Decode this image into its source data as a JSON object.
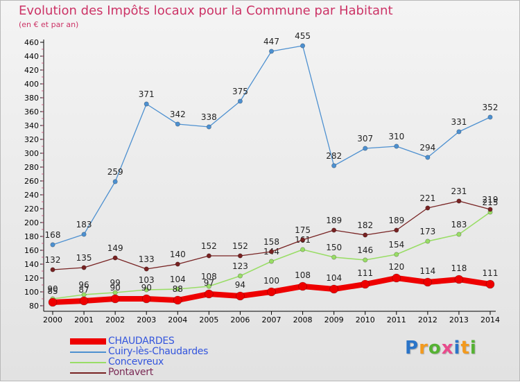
{
  "header": {
    "title": "Evolution des Impôts locaux pour la Commune par Habitant",
    "subtitle": "(en € et par an)"
  },
  "brand": {
    "letters": [
      "P",
      "r",
      "o",
      "x",
      "i",
      "t",
      "i"
    ]
  },
  "chart_data": {
    "type": "line",
    "title": "Evolution des Impôts locaux pour la Commune par Habitant",
    "subtitle": "(en € et par an)",
    "xlabel": "",
    "ylabel": "",
    "ylim": [
      80,
      460
    ],
    "ytick_step": 20,
    "grid": false,
    "legend_position": "bottom-left",
    "x": [
      "2000",
      "2001",
      "2002",
      "2003",
      "2004",
      "2005",
      "2006",
      "2007",
      "2008",
      "2009",
      "2010",
      "2011",
      "2012",
      "2013",
      "2014"
    ],
    "series": [
      {
        "name": "CHAUDARDES",
        "color": "#ee0000",
        "values": [
          85,
          87,
          90,
          90,
          88,
          97,
          94,
          100,
          108,
          104,
          111,
          120,
          114,
          118,
          111
        ],
        "labels": [
          "85",
          "87",
          "90",
          "90",
          "88",
          "97",
          "94",
          "100",
          "108",
          "104",
          "111",
          "120",
          "114",
          "118",
          "111"
        ]
      },
      {
        "name": "Cuiry-lès-Chaudardes",
        "color": "#4d90d0",
        "values": [
          168,
          183,
          259,
          371,
          342,
          338,
          375,
          447,
          455,
          282,
          307,
          310,
          294,
          331,
          352
        ],
        "labels": [
          "168",
          "183",
          "259",
          "371",
          "342",
          "338",
          "375",
          "447",
          "455",
          "282",
          "307",
          "310",
          "294",
          "331",
          "352"
        ]
      },
      {
        "name": "Concevreux",
        "color": "#99dd66",
        "values": [
          90,
          96,
          99,
          103,
          104,
          108,
          123,
          144,
          161,
          150,
          146,
          154,
          173,
          183,
          215
        ],
        "labels": [
          "90",
          "96",
          "99",
          "103",
          "104",
          "108",
          "123",
          "144",
          "161",
          "150",
          "146",
          "154",
          "173",
          "183",
          "215"
        ]
      },
      {
        "name": "Pontavert",
        "color": "#772222",
        "values": [
          132,
          135,
          149,
          133,
          140,
          152,
          152,
          158,
          175,
          189,
          182,
          189,
          221,
          231,
          219
        ],
        "labels": [
          "132",
          "135",
          "149",
          "133",
          "140",
          "152",
          "152",
          "158",
          "175",
          "189",
          "182",
          "189",
          "221",
          "231",
          "219"
        ]
      }
    ]
  }
}
